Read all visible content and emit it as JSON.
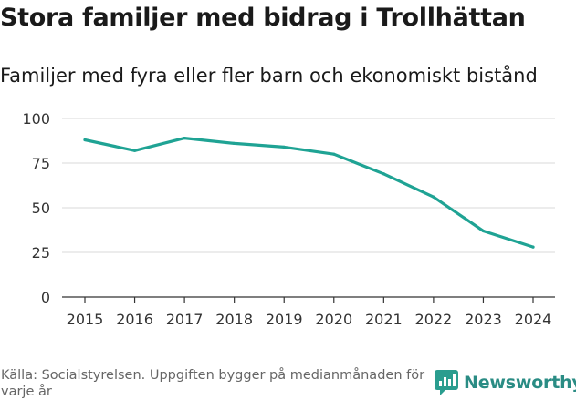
{
  "title": "Stora familjer med bidrag i Trollhättan",
  "subtitle": "Familjer med fyra eller fler barn och ekonomiskt bistånd",
  "source": "Källa: Socialstyrelsen. Uppgiften bygger på medianmånaden för varje år",
  "brand": {
    "name": "Newsworthy",
    "icon": "newsworthy-logo-icon",
    "color": "#2a9d8f"
  },
  "colors": {
    "line": "#1fa394",
    "grid": "#d9d9d9",
    "axis": "#333333"
  },
  "chart_data": {
    "type": "line",
    "title": "Familjer med fyra eller fler barn och ekonomiskt bistånd",
    "xlabel": "",
    "ylabel": "",
    "x": [
      "2015",
      "2016",
      "2017",
      "2018",
      "2019",
      "2020",
      "2021",
      "2022",
      "2023",
      "2024"
    ],
    "series": [
      {
        "name": "Familjer",
        "values": [
          88,
          82,
          89,
          86,
          84,
          80,
          69,
          56,
          37,
          28
        ]
      }
    ],
    "ylim": [
      0,
      100
    ],
    "yticks": [
      "0",
      "25",
      "50",
      "75",
      "100"
    ],
    "grid": true,
    "legend": "none"
  }
}
